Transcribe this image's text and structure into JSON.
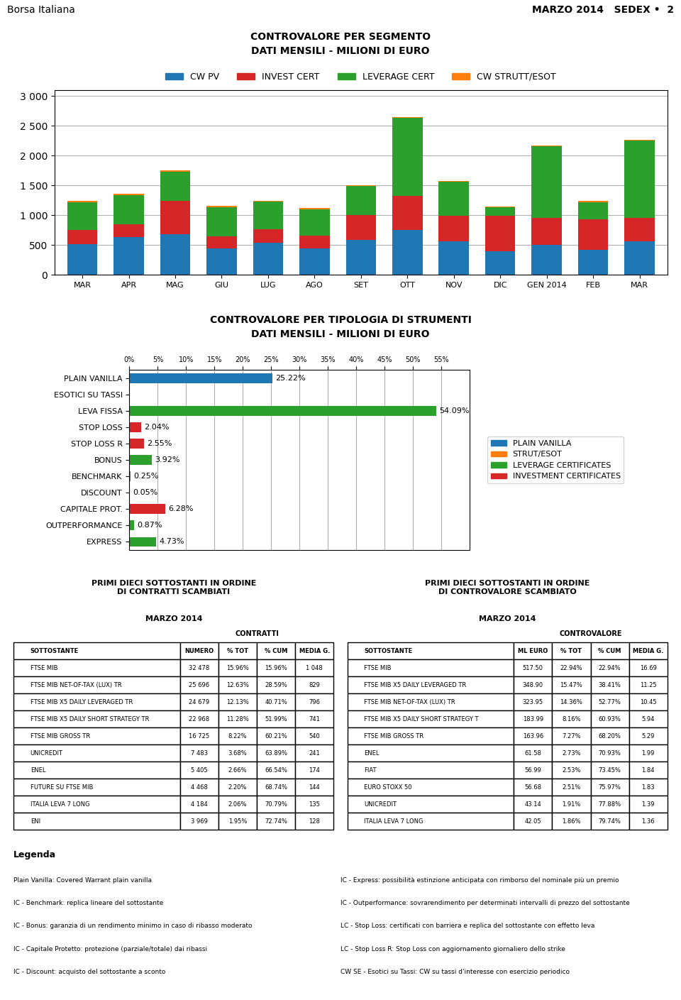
{
  "annotations": [
    "Borsa Italiana",
    "MARZO 2014   SEDEX •  2"
  ],
  "chart_data": [
    {
      "type": "bar",
      "title": "CONTROVALORE PER SEGMENTO",
      "subtitle": "DATI MENSILI - MILIONI DI EURO",
      "categories": [
        "MAR",
        "APR",
        "MAG",
        "GIU",
        "LUG",
        "AGO",
        "SET",
        "OTT",
        "NOV",
        "DIC",
        "GEN 2014",
        "FEB",
        "MAR"
      ],
      "stacked": true,
      "series": [
        {
          "name": "CW PV",
          "color": "#1f77b4",
          "values": [
            520,
            640,
            680,
            440,
            540,
            440,
            590,
            760,
            560,
            400,
            510,
            420,
            570
          ]
        },
        {
          "name": "INVEST CERT",
          "color": "#d62728",
          "values": [
            230,
            210,
            560,
            210,
            225,
            215,
            410,
            560,
            430,
            590,
            450,
            510,
            390
          ]
        },
        {
          "name": "LEVERAGE CERT",
          "color": "#2ca02c",
          "values": [
            470,
            490,
            490,
            490,
            460,
            450,
            490,
            1310,
            570,
            140,
            1200,
            290,
            1290
          ]
        },
        {
          "name": "CW STRUTT/ESOT",
          "color": "#ff7f0e",
          "values": [
            20,
            25,
            20,
            15,
            18,
            15,
            15,
            20,
            20,
            15,
            15,
            18,
            20
          ]
        }
      ],
      "ylim": [
        0,
        3100
      ],
      "yticks": [
        0,
        500,
        {
          "value": 1000,
          "label": "1 000"
        },
        {
          "value": 1500,
          "label": "1 500"
        },
        {
          "value": 2000,
          "label": "2 000"
        },
        {
          "value": 2500,
          "label": "2 500"
        },
        {
          "value": 3000,
          "label": "3 000"
        }
      ],
      "grid": true,
      "legend": "upper center"
    },
    {
      "type": "bar",
      "orientation": "horizontal",
      "title": "CONTROVALORE PER TIPOLOGIA DI STRUMENTI",
      "subtitle": "DATI MENSILI - MILIONI DI EURO",
      "categories": [
        "PLAIN VANILLA",
        "ESOTICI SU TASSI",
        "LEVA FISSA",
        "STOP LOSS",
        "STOP LOSS R",
        "BONUS",
        "BENCHMARK",
        "DISCOUNT",
        "CAPITALE PROT.",
        "OUTPERFORMANCE",
        "EXPRESS"
      ],
      "stacked": true,
      "series": [
        {
          "name": "PLAIN VANILLA",
          "color": "#1f77b4",
          "values": [
            25.22,
            0.0,
            null,
            null,
            null,
            null,
            null,
            null,
            null,
            null,
            null
          ],
          "value_labels": [
            "25.22%",
            null,
            null,
            null,
            null,
            null,
            null,
            null,
            null,
            null,
            null
          ]
        },
        {
          "name": "STRUT/ESOT",
          "color": "#ff7f0e",
          "values": [
            null,
            null,
            null,
            null,
            null,
            null,
            null,
            null,
            null,
            null,
            null
          ],
          "value_labels": [
            null,
            null,
            null,
            null,
            null,
            null,
            null,
            null,
            null,
            null,
            null
          ]
        },
        {
          "name": "LEVERAGE CERTIFICATES",
          "color": "#2ca02c",
          "values": [
            null,
            null,
            54.09,
            null,
            null,
            3.92,
            0.25,
            0.05,
            null,
            0.87,
            4.73
          ],
          "value_labels": [
            null,
            null,
            "54.09%",
            null,
            null,
            "3.92%",
            "0.25%",
            "0.05%",
            null,
            "0.87%",
            "4.73%"
          ]
        },
        {
          "name": "INVESTMENT CERTIFICATES",
          "color": "#d62728",
          "values": [
            null,
            null,
            null,
            2.04,
            2.55,
            null,
            null,
            null,
            6.28,
            null,
            null
          ],
          "value_labels": [
            null,
            null,
            null,
            "2.04%",
            "2.55%",
            null,
            null,
            null,
            "6.28%",
            null,
            null
          ]
        }
      ],
      "xlim": [
        0,
        60
      ],
      "xticks": [
        {
          "value": 0,
          "label": "0%"
        },
        {
          "value": 5,
          "label": "5%"
        },
        {
          "value": 10,
          "label": "10%"
        },
        {
          "value": 15,
          "label": "15%"
        },
        {
          "value": 20,
          "label": "20%"
        },
        {
          "value": 25,
          "label": "25%"
        },
        {
          "value": 30,
          "label": "30%"
        },
        {
          "value": 35,
          "label": "35%"
        },
        {
          "value": 40,
          "label": "40%"
        },
        {
          "value": 45,
          "label": "45%"
        },
        {
          "value": 50,
          "label": "50%"
        },
        {
          "value": 55,
          "label": "55%"
        }
      ],
      "grid": true,
      "data_labels": true,
      "legend": "center left"
    },
    {
      "type": "table",
      "title": "PRIMI DIECI SOTTOSTANTI IN ORDINE\nDI CONTRATTI SCAMBIATI",
      "subtitle": "MARZO 2014",
      "annotations": [
        "CONTRATTI"
      ],
      "columns": [
        "SOTTOSTANTE",
        "NUMERO",
        "% TOT",
        "% CUM",
        "MEDIA G."
      ],
      "rows": [
        [
          "FTSE MIB",
          "32 478",
          "15.96%",
          "15.96%",
          "1 048"
        ],
        [
          "FTSE MIB NET-OF-TAX (LUX) TR",
          "25 696",
          "12.63%",
          "28.59%",
          "829"
        ],
        [
          "FTSE MIB X5 DAILY LEVERAGED TR",
          "24 679",
          "12.13%",
          "40.71%",
          "796"
        ],
        [
          "FTSE MIB X5 DAILY SHORT STRATEGY TR",
          "22 968",
          "11.28%",
          "51.99%",
          "741"
        ],
        [
          "FTSE MIB GROSS TR",
          "16 725",
          "8.22%",
          "60.21%",
          "540"
        ],
        [
          "UNICREDIT",
          "7 483",
          "3.68%",
          "63.89%",
          "241"
        ],
        [
          "ENEL",
          "5 405",
          "2.66%",
          "66.54%",
          "174"
        ],
        [
          "FUTURE SU FTSE MIB",
          "4 468",
          "2.20%",
          "68.74%",
          "144"
        ],
        [
          "ITALIA LEVA 7 LONG",
          "4 184",
          "2.06%",
          "70.79%",
          "135"
        ],
        [
          "ENI",
          "3 969",
          "1.95%",
          "72.74%",
          "128"
        ]
      ]
    },
    {
      "type": "table",
      "title": "PRIMI DIECI SOTTOSTANTI IN ORDINE\nDI CONTROVALORE SCAMBIATO",
      "subtitle": "MARZO 2014",
      "annotations": [
        "CONTROVALORE"
      ],
      "columns": [
        "SOTTOSTANTE",
        "ML EURO",
        "% TOT",
        "% CUM",
        "MEDIA G."
      ],
      "rows": [
        [
          "FTSE MIB",
          "517.50",
          "22.94%",
          "22.94%",
          "16.69"
        ],
        [
          "FTSE MIB X5 DAILY LEVERAGED TR",
          "348.90",
          "15.47%",
          "38.41%",
          "11.25"
        ],
        [
          "FTSE MIB NET-OF-TAX (LUX) TR",
          "323.95",
          "14.36%",
          "52.77%",
          "10.45"
        ],
        [
          "FTSE MIB X5 DAILY SHORT STRATEGY T",
          "183.99",
          "8.16%",
          "60.93%",
          "5.94"
        ],
        [
          "FTSE MIB GROSS TR",
          "163.96",
          "7.27%",
          "68.20%",
          "5.29"
        ],
        [
          "ENEL",
          "61.58",
          "2.73%",
          "70.93%",
          "1.99"
        ],
        [
          "FIAT",
          "56.99",
          "2.53%",
          "73.45%",
          "1.84"
        ],
        [
          "EURO STOXX 50",
          "56.68",
          "2.51%",
          "75.97%",
          "1.83"
        ],
        [
          "UNICREDIT",
          "43.14",
          "1.91%",
          "77.88%",
          "1.39"
        ],
        [
          "ITALIA LEVA 7 LONG",
          "42.05",
          "1.86%",
          "79.74%",
          "1.36"
        ]
      ]
    },
    {
      "type": "text",
      "title": "Legenda",
      "annotations": [
        "Plain Vanilla: Covered Warrant plain vanilla",
        "IC - Benchmark: replica lineare del sottostante",
        "IC - Bonus: garanzia di un rendimento minimo in caso di ribasso moderato",
        "IC - Capitale Protetto: protezione (parziale/totale) dai ribassi",
        "IC - Discount: acquisto del sottostante a sconto",
        "IC - Express: possibilità estinzione anticipata con rimborso del nominale più un premio",
        "IC - Outperformance: sovrarendimento per determinati intervalli di prezzo del sottostante",
        "LC - Stop Loss: certificati con barriera e replica del sottostante con effetto leva",
        "LC - Stop Loss R: Stop Loss con aggiornamento giornaliero dello strike",
        "CW SE - Esotici su Tassi: CW su tassi d'interesse con esercizio periodico"
      ]
    }
  ]
}
